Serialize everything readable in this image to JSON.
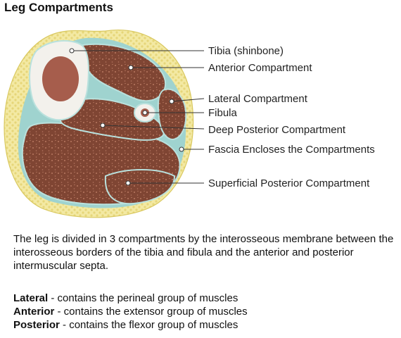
{
  "title": "Leg Compartments",
  "labels": {
    "tibia": "Tibia (shinbone)",
    "anterior": "Anterior Compartment",
    "lateral": "Lateral Compartment",
    "fibula": "Fibula",
    "deep_posterior": "Deep Posterior Compartment",
    "fascia": "Fascia Encloses the Compartments",
    "superficial_posterior": "Superficial Posterior Compartment"
  },
  "description": "The leg is divided in 3 compartments by the interosseous membrane between the interosseous borders of the tibia and fibula and the anterior and posterior intermuscular septa.",
  "compartment_list": [
    {
      "term": "Lateral",
      "text": " - contains the perineal group of muscles"
    },
    {
      "term": "Anterior",
      "text": " - contains the extensor group of muscles"
    },
    {
      "term": "Posterior",
      "text": " - contains the flexor group of muscles"
    }
  ],
  "colors": {
    "fat": "#f3e9a3",
    "fat_edge": "#e6d679",
    "muscle": "#7f4533",
    "fascia": "#9fd3cf",
    "bone": "#f3f1ec",
    "marrow": "#a65d4c"
  }
}
